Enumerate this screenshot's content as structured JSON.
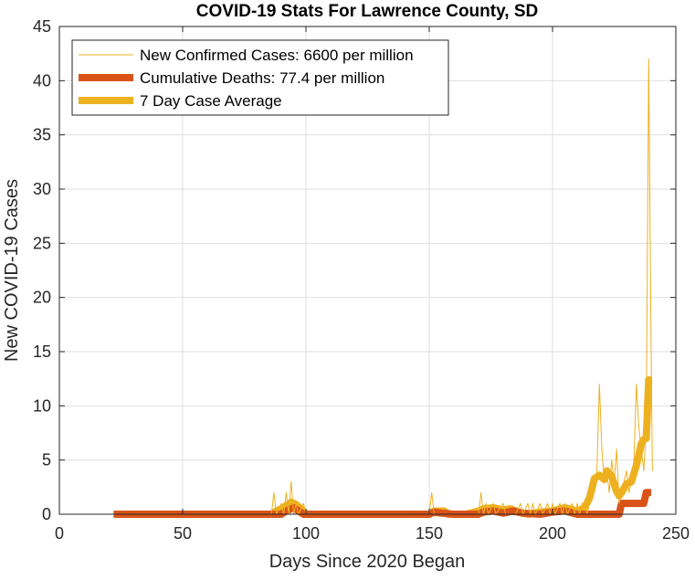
{
  "chart_data": {
    "type": "line",
    "title": "COVID-19 Stats For Lawrence County, SD",
    "xlabel": "Days Since 2020 Began",
    "ylabel": "New COVID-19 Cases",
    "xlim": [
      0,
      250
    ],
    "ylim": [
      0,
      45
    ],
    "xticks": [
      0,
      50,
      100,
      150,
      200,
      250
    ],
    "yticks": [
      0,
      5,
      10,
      15,
      20,
      25,
      30,
      35,
      40,
      45
    ],
    "grid": true,
    "legend_position": "top-left",
    "series": [
      {
        "name": "New Confirmed Cases: 6600 per million",
        "color": "#EDB120",
        "style": "thin",
        "points": [
          [
            22,
            0
          ],
          [
            86,
            0
          ],
          [
            87,
            2
          ],
          [
            88,
            0
          ],
          [
            90,
            1
          ],
          [
            91,
            0
          ],
          [
            92,
            2
          ],
          [
            93,
            0
          ],
          [
            94,
            3
          ],
          [
            95,
            0
          ],
          [
            96,
            1
          ],
          [
            97,
            0
          ],
          [
            99,
            1
          ],
          [
            100,
            0
          ],
          [
            150,
            0
          ],
          [
            151,
            2
          ],
          [
            152,
            0
          ],
          [
            170,
            0
          ],
          [
            171,
            2
          ],
          [
            172,
            0
          ],
          [
            173,
            1
          ],
          [
            174,
            0
          ],
          [
            176,
            1
          ],
          [
            177,
            0
          ],
          [
            180,
            1
          ],
          [
            181,
            0
          ],
          [
            185,
            0
          ],
          [
            187,
            1
          ],
          [
            188,
            0
          ],
          [
            190,
            1
          ],
          [
            191,
            0
          ],
          [
            192,
            1
          ],
          [
            193,
            0
          ],
          [
            195,
            1
          ],
          [
            196,
            0
          ],
          [
            198,
            1
          ],
          [
            199,
            0
          ],
          [
            200,
            1
          ],
          [
            201,
            0
          ],
          [
            203,
            1
          ],
          [
            204,
            0
          ],
          [
            205,
            1
          ],
          [
            206,
            0
          ],
          [
            208,
            1
          ],
          [
            209,
            0
          ],
          [
            210,
            1
          ],
          [
            211,
            0
          ],
          [
            212,
            1
          ],
          [
            213,
            1
          ],
          [
            214,
            0
          ],
          [
            215,
            1
          ],
          [
            216,
            3
          ],
          [
            217,
            2
          ],
          [
            218,
            4
          ],
          [
            219,
            12
          ],
          [
            220,
            6
          ],
          [
            221,
            3
          ],
          [
            222,
            4
          ],
          [
            223,
            2
          ],
          [
            224,
            5
          ],
          [
            225,
            3
          ],
          [
            226,
            6
          ],
          [
            227,
            1
          ],
          [
            228,
            2
          ],
          [
            229,
            3
          ],
          [
            230,
            4
          ],
          [
            231,
            2
          ],
          [
            232,
            3
          ],
          [
            233,
            5
          ],
          [
            234,
            12
          ],
          [
            235,
            8
          ],
          [
            236,
            6
          ],
          [
            237,
            4
          ],
          [
            238,
            8
          ],
          [
            239,
            42
          ],
          [
            240,
            15
          ],
          [
            240.5,
            4
          ]
        ]
      },
      {
        "name": "Cumulative Deaths: 77.4 per million",
        "color": "#D95319",
        "style": "thick",
        "points": [
          [
            22,
            0
          ],
          [
            90,
            0
          ],
          [
            92,
            0.3
          ],
          [
            95,
            0.6
          ],
          [
            97,
            0.3
          ],
          [
            99,
            0
          ],
          [
            150,
            0
          ],
          [
            152,
            0.2
          ],
          [
            155,
            0.1
          ],
          [
            160,
            0
          ],
          [
            170,
            0
          ],
          [
            172,
            0.2
          ],
          [
            176,
            0.3
          ],
          [
            180,
            0.1
          ],
          [
            184,
            0.3
          ],
          [
            188,
            0.1
          ],
          [
            195,
            0
          ],
          [
            200,
            0.2
          ],
          [
            205,
            0.3
          ],
          [
            210,
            0
          ],
          [
            227,
            0
          ],
          [
            228,
            1
          ],
          [
            237,
            1
          ],
          [
            238,
            2
          ],
          [
            240,
            2
          ]
        ]
      },
      {
        "name": "7 Day Case Average",
        "color": "#EDB120",
        "style": "thick",
        "points": [
          [
            22,
            0
          ],
          [
            86,
            0
          ],
          [
            88,
            0.3
          ],
          [
            90,
            0.5
          ],
          [
            92,
            0.8
          ],
          [
            94,
            1.1
          ],
          [
            96,
            0.9
          ],
          [
            98,
            0.5
          ],
          [
            100,
            0
          ],
          [
            150,
            0
          ],
          [
            152,
            0.3
          ],
          [
            156,
            0.3
          ],
          [
            158,
            0
          ],
          [
            165,
            0
          ],
          [
            170,
            0.3
          ],
          [
            172,
            0.5
          ],
          [
            176,
            0.6
          ],
          [
            180,
            0.4
          ],
          [
            183,
            0.5
          ],
          [
            186,
            0.2
          ],
          [
            190,
            0
          ],
          [
            195,
            0.2
          ],
          [
            200,
            0.3
          ],
          [
            205,
            0.6
          ],
          [
            210,
            0.3
          ],
          [
            213,
            0.6
          ],
          [
            215,
            1.5
          ],
          [
            217,
            3.3
          ],
          [
            219,
            3.6
          ],
          [
            221,
            3.2
          ],
          [
            222,
            4.0
          ],
          [
            224,
            3.5
          ],
          [
            226,
            2.1
          ],
          [
            227,
            1.7
          ],
          [
            228,
            2.0
          ],
          [
            230,
            2.8
          ],
          [
            232,
            3.0
          ],
          [
            234,
            4.5
          ],
          [
            236,
            6.5
          ],
          [
            237,
            6.9
          ],
          [
            238,
            7.0
          ],
          [
            239,
            12.4
          ],
          [
            240,
            12.4
          ]
        ]
      }
    ]
  }
}
